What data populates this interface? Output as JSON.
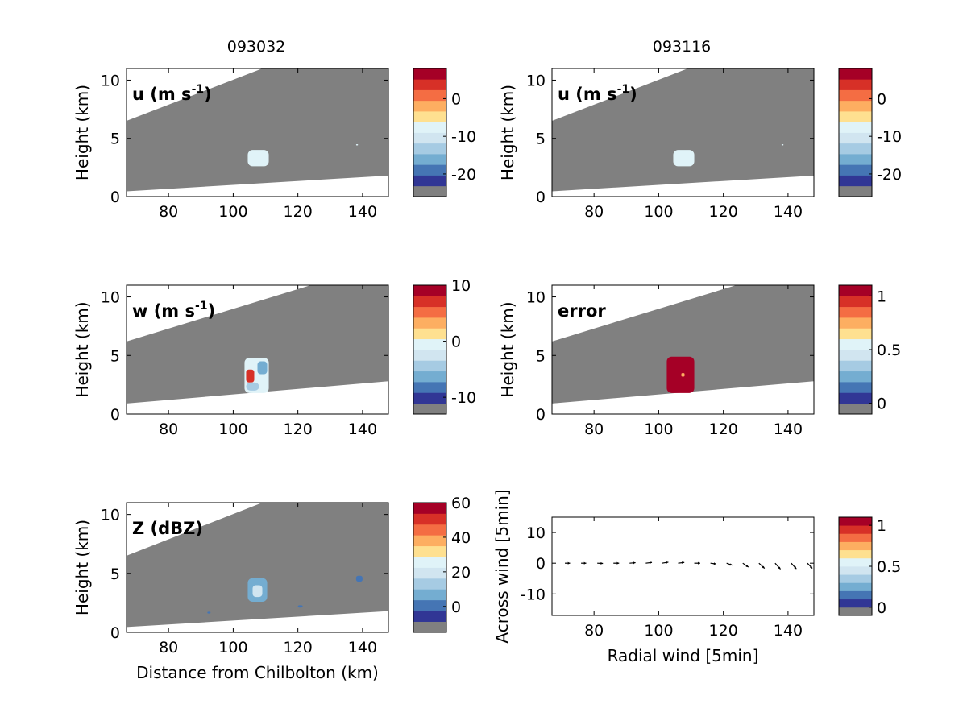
{
  "figure": {
    "column_titles": [
      "093032",
      "093116"
    ]
  },
  "colors": {
    "masked": "#808080",
    "scale": [
      "#313695",
      "#4575b4",
      "#74add1",
      "#a6cbe3",
      "#d1e5f0",
      "#e0f3f8",
      "#fee090",
      "#fdae61",
      "#f46d43",
      "#d73027",
      "#a50026"
    ]
  },
  "chart_data": [
    {
      "id": "u_093032",
      "type": "heatmap",
      "panel_label": "u (m s",
      "panel_label_sup": "-1",
      "panel_label_tail": ")",
      "ylabel": "Height (km)",
      "xlabel": "",
      "xlim": [
        67,
        148
      ],
      "ylim": [
        0,
        11
      ],
      "xticks": [
        "80",
        "100",
        "120",
        "140"
      ],
      "yticks": [
        "0",
        "5",
        "10"
      ],
      "beam_sector": {
        "lower": [
          [
            67,
            0.45
          ],
          [
            148,
            1.8
          ]
        ],
        "upper": [
          [
            67,
            6.5
          ],
          [
            109,
            11
          ],
          [
            148,
            11
          ]
        ]
      },
      "features": [
        {
          "x": [
            104.5,
            111
          ],
          "y": [
            2.6,
            4.0
          ],
          "value": -8,
          "color": "#e0f3f8"
        },
        {
          "x": [
            138,
            138.6
          ],
          "y": [
            4.4,
            4.5
          ],
          "value": -8,
          "color": "#e0f3f8"
        }
      ],
      "colorbar": {
        "ticks": [
          "0",
          "-10",
          "-20"
        ],
        "tick_values": [
          0,
          -10,
          -20
        ],
        "range": [
          -26,
          8
        ]
      }
    },
    {
      "id": "u_093116",
      "type": "heatmap",
      "panel_label": "u (m s",
      "panel_label_sup": "-1",
      "panel_label_tail": ")",
      "ylabel": "Height (km)",
      "xlabel": "",
      "xlim": [
        67,
        148
      ],
      "ylim": [
        0,
        11
      ],
      "xticks": [
        "80",
        "100",
        "120",
        "140"
      ],
      "yticks": [
        "0",
        "5",
        "10"
      ],
      "beam_sector": {
        "lower": [
          [
            67,
            0.45
          ],
          [
            148,
            1.8
          ]
        ],
        "upper": [
          [
            67,
            6.5
          ],
          [
            109,
            11
          ],
          [
            148,
            11
          ]
        ]
      },
      "features": [
        {
          "x": [
            104.5,
            111
          ],
          "y": [
            2.6,
            4.0
          ],
          "value": -8,
          "color": "#e0f3f8"
        },
        {
          "x": [
            138,
            138.6
          ],
          "y": [
            4.4,
            4.5
          ],
          "value": -8,
          "color": "#e0f3f8"
        }
      ],
      "colorbar": {
        "ticks": [
          "0",
          "-10",
          "-20"
        ],
        "tick_values": [
          0,
          -10,
          -20
        ],
        "range": [
          -26,
          8
        ]
      }
    },
    {
      "id": "w_093032",
      "type": "heatmap",
      "panel_label": "w (m s",
      "panel_label_sup": "-1",
      "panel_label_tail": ")",
      "ylabel": "Height (km)",
      "xlabel": "",
      "xlim": [
        67,
        148
      ],
      "ylim": [
        0,
        11
      ],
      "xticks": [
        "80",
        "100",
        "120",
        "140"
      ],
      "yticks": [
        "0",
        "5",
        "10"
      ],
      "beam_sector": {
        "lower": [
          [
            67,
            0.9
          ],
          [
            148,
            2.8
          ]
        ],
        "upper": [
          [
            67,
            6.2
          ],
          [
            124,
            11
          ],
          [
            148,
            11
          ]
        ]
      },
      "features": [
        {
          "x": [
            103.5,
            111
          ],
          "y": [
            1.8,
            4.8
          ],
          "value": 1,
          "color": "#e0f3f8"
        },
        {
          "x": [
            104,
            106.5
          ],
          "y": [
            2.7,
            3.8
          ],
          "value": 6,
          "color": "#d73027"
        },
        {
          "x": [
            107.5,
            110.5
          ],
          "y": [
            3.4,
            4.5
          ],
          "value": -5,
          "color": "#74add1"
        },
        {
          "x": [
            104,
            108
          ],
          "y": [
            2.0,
            2.7
          ],
          "value": -3,
          "color": "#a6cbe3"
        }
      ],
      "colorbar": {
        "ticks": [
          "10",
          "0",
          "-10"
        ],
        "tick_values": [
          10,
          0,
          -10
        ],
        "range": [
          -13,
          10
        ]
      }
    },
    {
      "id": "error_093116",
      "type": "heatmap",
      "panel_label": "error",
      "panel_label_sup": "",
      "panel_label_tail": "",
      "ylabel": "Height (km)",
      "xlabel": "",
      "xlim": [
        67,
        148
      ],
      "ylim": [
        0,
        11
      ],
      "xticks": [
        "80",
        "100",
        "120",
        "140"
      ],
      "yticks": [
        "0",
        "5",
        "10"
      ],
      "beam_sector": {
        "lower": [
          [
            67,
            0.9
          ],
          [
            148,
            2.8
          ]
        ],
        "upper": [
          [
            67,
            6.2
          ],
          [
            124,
            11
          ],
          [
            148,
            11
          ]
        ]
      },
      "features": [
        {
          "x": [
            102.5,
            111
          ],
          "y": [
            1.8,
            4.9
          ],
          "value": 1,
          "color": "#a50026"
        },
        {
          "x": [
            107,
            108
          ],
          "y": [
            3.2,
            3.5
          ],
          "value": 0.7,
          "color": "#fdae61"
        }
      ],
      "colorbar": {
        "ticks": [
          "1",
          "0.5",
          "0"
        ],
        "tick_values": [
          1,
          0.5,
          0
        ],
        "range": [
          -0.1,
          1.1
        ]
      }
    },
    {
      "id": "Z_093032",
      "type": "heatmap",
      "panel_label": "Z (dBZ)",
      "panel_label_sup": "",
      "panel_label_tail": "",
      "ylabel": "Height (km)",
      "xlabel": "Distance from Chilbolton (km)",
      "xlim": [
        67,
        148
      ],
      "ylim": [
        0,
        11
      ],
      "xticks": [
        "80",
        "100",
        "120",
        "140"
      ],
      "yticks": [
        "0",
        "5",
        "10"
      ],
      "beam_sector": {
        "lower": [
          [
            67,
            0.45
          ],
          [
            148,
            1.8
          ]
        ],
        "upper": [
          [
            67,
            6.5
          ],
          [
            109,
            11
          ],
          [
            148,
            11
          ]
        ]
      },
      "features": [
        {
          "x": [
            104.5,
            110.5
          ],
          "y": [
            2.6,
            4.6
          ],
          "value": 10,
          "color": "#74add1"
        },
        {
          "x": [
            106,
            109
          ],
          "y": [
            3.0,
            4.0
          ],
          "value": 20,
          "color": "#d1e5f0"
        },
        {
          "x": [
            138,
            140
          ],
          "y": [
            4.3,
            4.8
          ],
          "value": 5,
          "color": "#4575b4"
        },
        {
          "x": [
            120,
            121.5
          ],
          "y": [
            2.1,
            2.3
          ],
          "value": 5,
          "color": "#4575b4"
        },
        {
          "x": [
            92,
            93
          ],
          "y": [
            1.6,
            1.75
          ],
          "value": 5,
          "color": "#4575b4"
        }
      ],
      "colorbar": {
        "ticks": [
          "60",
          "40",
          "20",
          "0"
        ],
        "tick_values": [
          60,
          40,
          20,
          0
        ],
        "range": [
          -15,
          60
        ]
      }
    },
    {
      "id": "quiver_093116",
      "type": "scatter",
      "panel_label": "",
      "panel_label_sup": "",
      "panel_label_tail": "",
      "ylabel": "Across wind [5min]",
      "xlabel": "Radial wind [5min]",
      "xlim": [
        67,
        148
      ],
      "ylim": [
        -17,
        15
      ],
      "xticks": [
        "80",
        "100",
        "120",
        "140"
      ],
      "yticks": [
        "-10",
        "0",
        "10"
      ],
      "arrows": [
        {
          "x": 71,
          "y": 0,
          "u": 2.0,
          "v": 0.0
        },
        {
          "x": 76,
          "y": 0,
          "u": 2.0,
          "v": 0.0
        },
        {
          "x": 81,
          "y": 0,
          "u": 2.2,
          "v": -0.1
        },
        {
          "x": 86,
          "y": 0,
          "u": 2.2,
          "v": 0.0
        },
        {
          "x": 91,
          "y": 0,
          "u": 2.3,
          "v": 0.2
        },
        {
          "x": 96,
          "y": 0,
          "u": 2.4,
          "v": 0.3
        },
        {
          "x": 101,
          "y": 0,
          "u": 2.5,
          "v": 0.4
        },
        {
          "x": 106,
          "y": 0,
          "u": 2.4,
          "v": 0.3
        },
        {
          "x": 111,
          "y": 0,
          "u": 2.3,
          "v": 0.0
        },
        {
          "x": 116,
          "y": 0,
          "u": 2.2,
          "v": -0.3
        },
        {
          "x": 121,
          "y": 0,
          "u": 2.2,
          "v": -0.8
        },
        {
          "x": 126,
          "y": 0,
          "u": 2.2,
          "v": -1.5
        },
        {
          "x": 131,
          "y": 0,
          "u": 2.2,
          "v": -2.0
        },
        {
          "x": 136,
          "y": 0,
          "u": 2.1,
          "v": -2.3
        },
        {
          "x": 141,
          "y": 0,
          "u": 2.0,
          "v": -2.2
        },
        {
          "x": 146,
          "y": 0,
          "u": 1.9,
          "v": -2.0
        }
      ],
      "colorbar": {
        "ticks": [
          "1",
          "0.5",
          "0"
        ],
        "tick_values": [
          1,
          0.5,
          0
        ],
        "range": [
          -0.1,
          1.1
        ]
      }
    }
  ]
}
